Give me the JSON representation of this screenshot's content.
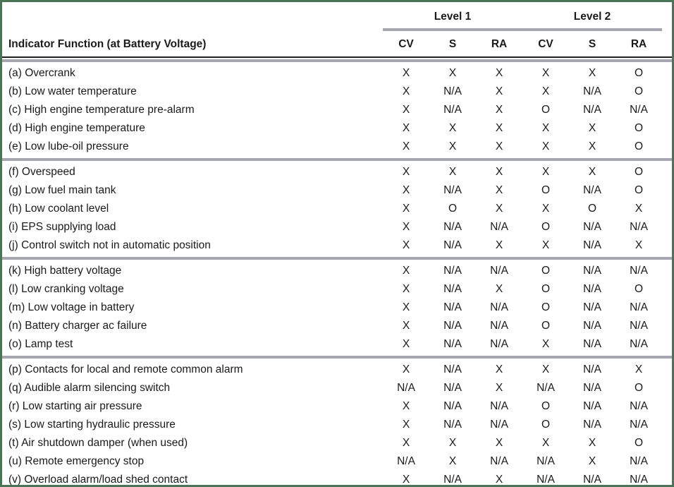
{
  "table": {
    "indicator_header": "Indicator Function (at Battery Voltage)",
    "level_headers": [
      "Level 1",
      "Level 2"
    ],
    "sub_columns": [
      "CV",
      "S",
      "RA"
    ],
    "groups": [
      {
        "rows": [
          {
            "label": "(a) Overcrank",
            "values": [
              "X",
              "X",
              "X",
              "X",
              "X",
              "O"
            ]
          },
          {
            "label": "(b) Low water temperature",
            "values": [
              "X",
              "N/A",
              "X",
              "X",
              "N/A",
              "O"
            ]
          },
          {
            "label": "(c) High engine temperature pre-alarm",
            "values": [
              "X",
              "N/A",
              "X",
              "O",
              "N/A",
              "N/A"
            ]
          },
          {
            "label": "(d) High engine temperature",
            "values": [
              "X",
              "X",
              "X",
              "X",
              "X",
              "O"
            ]
          },
          {
            "label": "(e) Low lube-oil pressure",
            "values": [
              "X",
              "X",
              "X",
              "X",
              "X",
              "O"
            ]
          }
        ]
      },
      {
        "rows": [
          {
            "label": "(f) Overspeed",
            "values": [
              "X",
              "X",
              "X",
              "X",
              "X",
              "O"
            ]
          },
          {
            "label": "(g) Low fuel main tank",
            "values": [
              "X",
              "N/A",
              "X",
              "O",
              "N/A",
              "O"
            ]
          },
          {
            "label": "(h) Low coolant level",
            "values": [
              "X",
              "O",
              "X",
              "X",
              "O",
              "X"
            ]
          },
          {
            "label": "(i) EPS supplying load",
            "values": [
              "X",
              "N/A",
              "N/A",
              "O",
              "N/A",
              "N/A"
            ]
          },
          {
            "label": "(j) Control switch not in automatic position",
            "values": [
              "X",
              "N/A",
              "X",
              "X",
              "N/A",
              "X"
            ]
          }
        ]
      },
      {
        "rows": [
          {
            "label": "(k) High battery voltage",
            "values": [
              "X",
              "N/A",
              "N/A",
              "O",
              "N/A",
              "N/A"
            ]
          },
          {
            "label": "(l) Low cranking voltage",
            "values": [
              "X",
              "N/A",
              "X",
              "O",
              "N/A",
              "O"
            ]
          },
          {
            "label": "(m) Low voltage in battery",
            "values": [
              "X",
              "N/A",
              "N/A",
              "O",
              "N/A",
              "N/A"
            ]
          },
          {
            "label": "(n) Battery charger ac failure",
            "values": [
              "X",
              "N/A",
              "N/A",
              "O",
              "N/A",
              "N/A"
            ]
          },
          {
            "label": "(o) Lamp test",
            "values": [
              "X",
              "N/A",
              "N/A",
              "X",
              "N/A",
              "N/A"
            ]
          }
        ]
      },
      {
        "rows": [
          {
            "label": "(p) Contacts for local and remote common alarm",
            "values": [
              "X",
              "N/A",
              "X",
              "X",
              "N/A",
              "X"
            ]
          },
          {
            "label": "(q) Audible alarm silencing switch",
            "values": [
              "N/A",
              "N/A",
              "X",
              "N/A",
              "N/A",
              "O"
            ]
          },
          {
            "label": "(r) Low starting air pressure",
            "values": [
              "X",
              "N/A",
              "N/A",
              "O",
              "N/A",
              "N/A"
            ]
          },
          {
            "label": "(s) Low starting hydraulic pressure",
            "values": [
              "X",
              "N/A",
              "N/A",
              "O",
              "N/A",
              "N/A"
            ]
          },
          {
            "label": "(t) Air shutdown damper (when used)",
            "values": [
              "X",
              "X",
              "X",
              "X",
              "X",
              "O"
            ]
          },
          {
            "label": "(u) Remote emergency stop",
            "values": [
              "N/A",
              "X",
              "N/A",
              "N/A",
              "X",
              "N/A"
            ]
          },
          {
            "label": "(v) Overload alarm/load shed contact",
            "values": [
              "X",
              "N/A",
              "X",
              "N/A",
              "N/A",
              "N/A"
            ]
          }
        ]
      }
    ]
  },
  "colors": {
    "frame_green": "#4b7355",
    "separator_gray": "#a6a6b0",
    "rule_black": "#1f1f1f",
    "text": "#1a1a1a"
  }
}
